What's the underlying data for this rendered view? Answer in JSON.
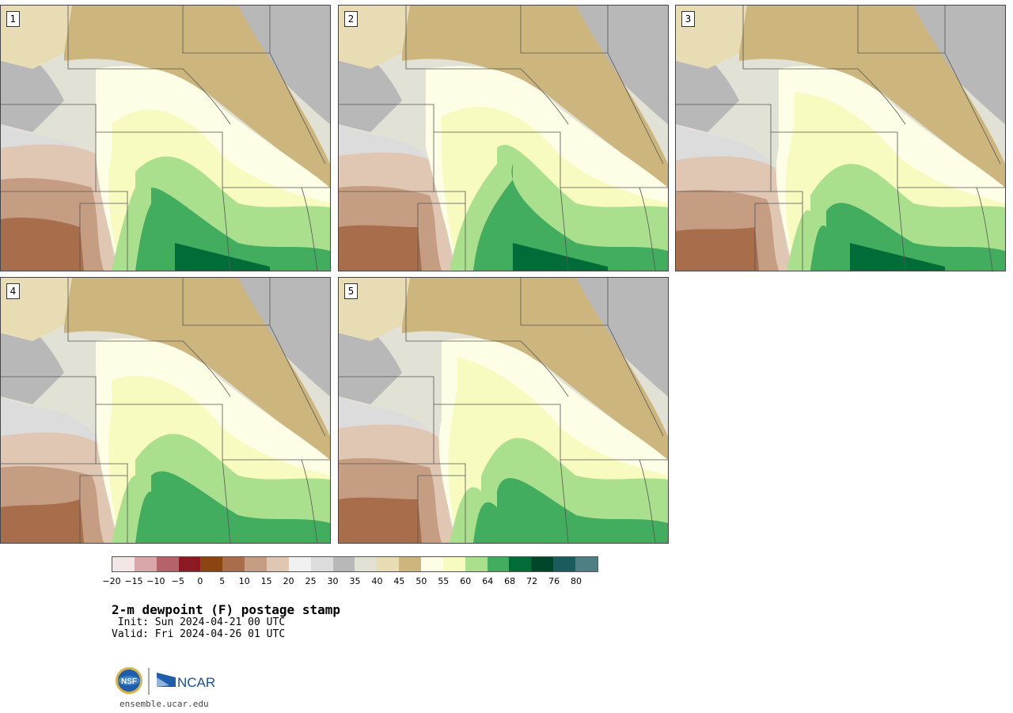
{
  "panels": [
    {
      "label": "1"
    },
    {
      "label": "2"
    },
    {
      "label": "3"
    },
    {
      "label": "4"
    },
    {
      "label": "5"
    }
  ],
  "colorbar": {
    "colors": [
      "#f3e6e6",
      "#d9a6aa",
      "#b5636a",
      "#8b1a24",
      "#8c4413",
      "#a86d4b",
      "#c59d82",
      "#e0c7b4",
      "#f1f1f1",
      "#dcdcdc",
      "#b8b8b8",
      "#e1e1d5",
      "#e8dcb5",
      "#cdb67e",
      "#fefee6",
      "#f7fbbf",
      "#a9df8d",
      "#43ad5f",
      "#006d39",
      "#00452a",
      "#1b5b5e",
      "#4f7e83"
    ],
    "ticks": [
      "−20",
      "−15",
      "−10",
      "−5",
      "0",
      "5",
      "10",
      "15",
      "20",
      "25",
      "30",
      "35",
      "40",
      "45",
      "50",
      "55",
      "60",
      "64",
      "68",
      "72",
      "76",
      "80"
    ]
  },
  "title": "2-m dewpoint (F) postage stamp",
  "init": " Init: Sun 2024-04-21 00 UTC",
  "valid": "Valid: Fri 2024-04-26 01 UTC",
  "logos": {
    "nsf": "NSF",
    "ncar": "NCAR"
  },
  "url": "ensemble.ucar.edu"
}
